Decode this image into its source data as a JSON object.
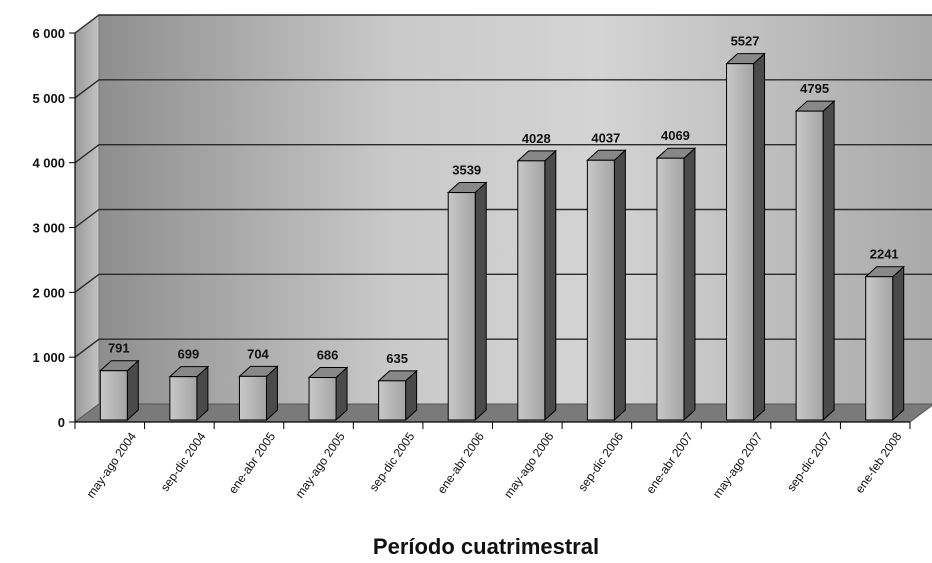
{
  "chart_data": {
    "type": "bar",
    "title": "",
    "xlabel": "Período cuatrimestral",
    "ylabel": "",
    "ylim": [
      0,
      6000
    ],
    "yticks": [
      "0",
      "1 000",
      "2 000",
      "3 000",
      "4 000",
      "5 000",
      "6 000"
    ],
    "grid": true,
    "legend": "none",
    "style": "3d",
    "categories": [
      "may-ago 2004",
      "sep-dic 2004",
      "ene-abr 2005",
      "may-ago 2005",
      "sep-dic 2005",
      "ene-abr 2006",
      "may-ago 2006",
      "sep-dic 2006",
      "ene-abr 2007",
      "may-ago 2007",
      "sep-dic 2007",
      "ene-feb 2008"
    ],
    "values": [
      791,
      699,
      704,
      686,
      635,
      3539,
      4028,
      4037,
      4069,
      5527,
      4795,
      2241
    ],
    "colors": {
      "bar_front": "#b4b4b4",
      "bar_side": "#4a4a4a",
      "bar_top": "#888888",
      "wall": "#bdbdbd",
      "floor": "#7a7a7a",
      "gridline": "#2a2a2a"
    }
  }
}
